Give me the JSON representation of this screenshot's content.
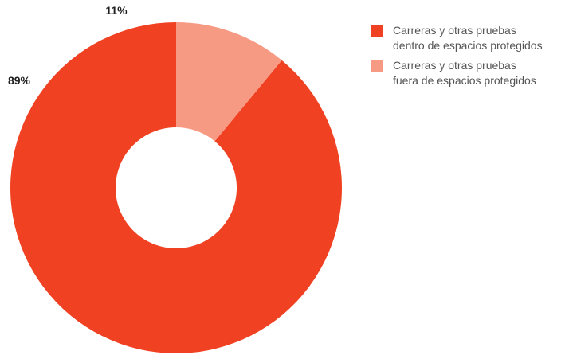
{
  "chart_data": {
    "type": "pie",
    "variant": "donut",
    "categories": [
      "Carreras y otras pruebas\ndentro de espacios protegidos",
      "Carreras y otras pruebas\nfuera de espacios protegidos"
    ],
    "values": [
      89,
      11
    ],
    "data_labels": [
      "89%",
      "11%"
    ],
    "colors": [
      "#f04123",
      "#f79a83"
    ],
    "legend": {
      "position": "top-right",
      "entries": [
        "Carreras y otras pruebas\ndentro de espacios protegidos",
        "Carreras y otras pruebas\nfuera de espacios protegidos"
      ]
    },
    "title": "",
    "grid": false
  }
}
